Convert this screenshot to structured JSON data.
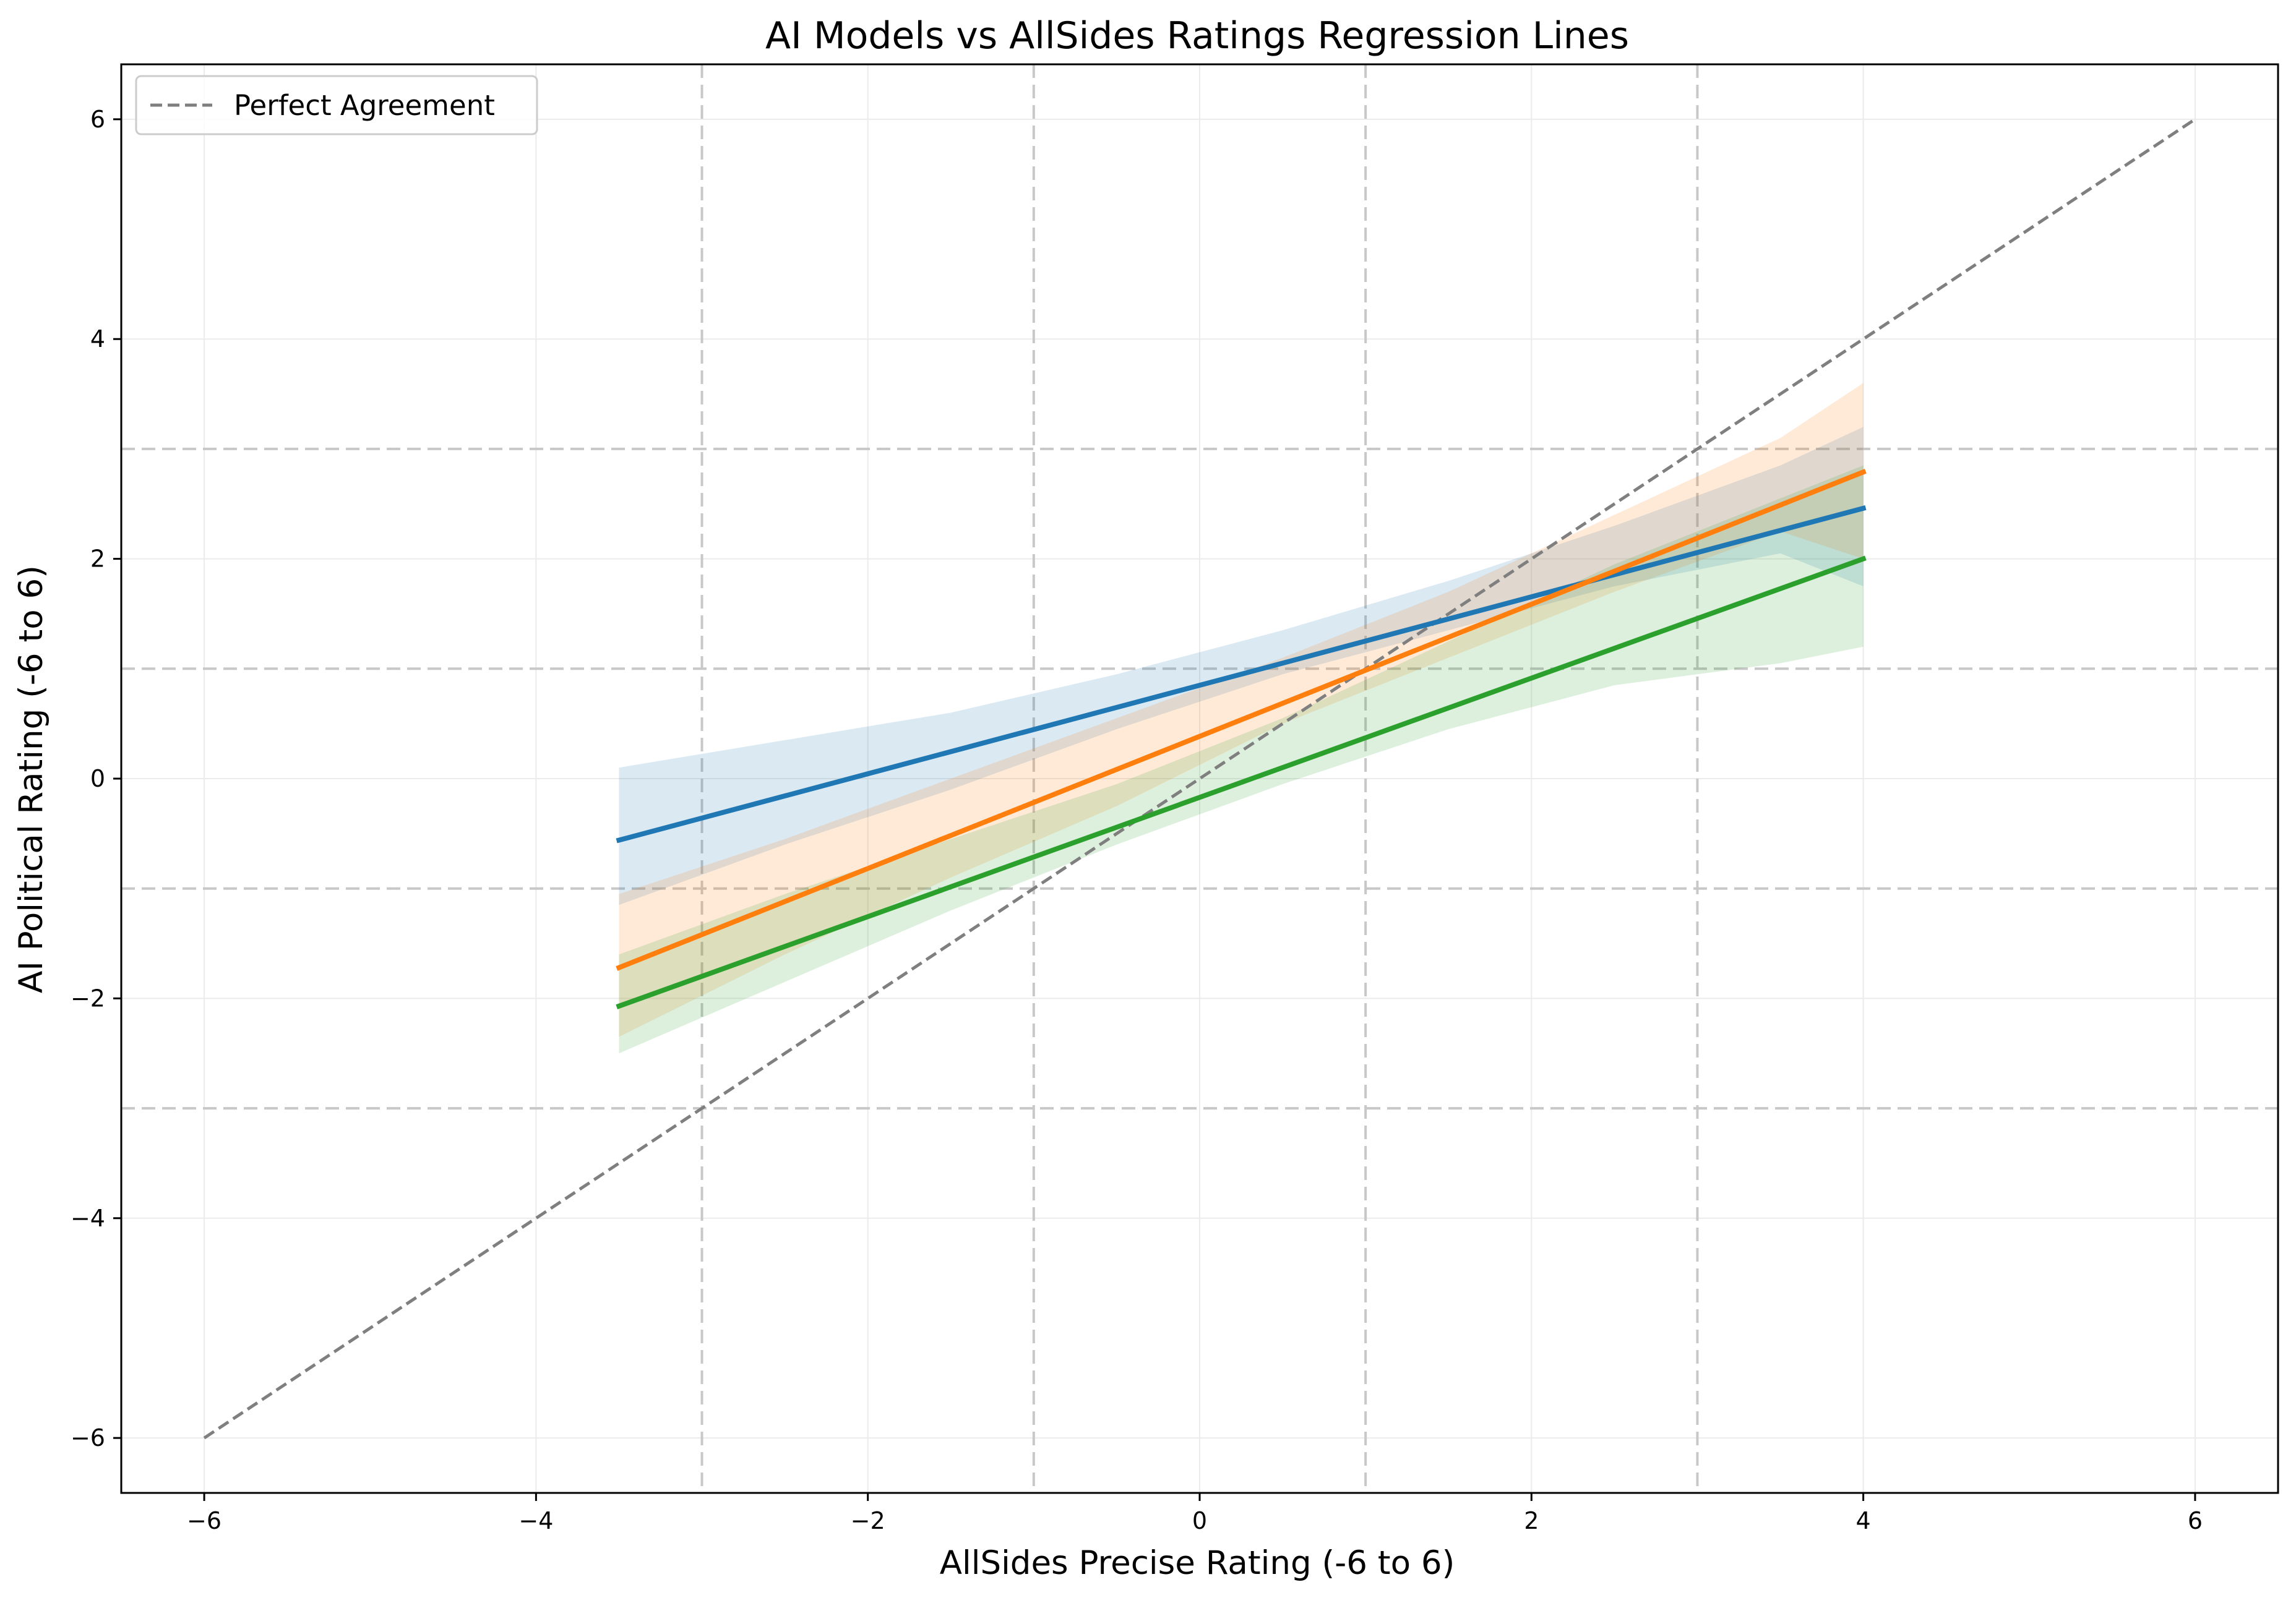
{
  "chart_data": {
    "type": "line",
    "title": "AI Models vs AllSides Ratings Regression Lines",
    "xlabel": "AllSides Precise Rating (-6 to 6)",
    "ylabel": "AI Political Rating (-6 to 6)",
    "xlim": [
      -6.5,
      6.5
    ],
    "ylim": [
      -6.5,
      6.5
    ],
    "xticks": [
      -6,
      -4,
      -2,
      0,
      2,
      4,
      6
    ],
    "yticks": [
      -6,
      -4,
      -2,
      0,
      2,
      4,
      6
    ],
    "xtick_labels": [
      "−6",
      "−4",
      "−2",
      "0",
      "2",
      "4",
      "6"
    ],
    "ytick_labels": [
      "−6",
      "−4",
      "−2",
      "0",
      "2",
      "4",
      "6"
    ],
    "grid": true,
    "reference_lines": {
      "vertical": [
        -3,
        -1,
        1,
        3
      ],
      "horizontal": [
        -3,
        -1,
        1,
        3
      ],
      "style": "dashed",
      "color": "#c8c8c8"
    },
    "perfect_agreement": {
      "name": "Perfect Agreement",
      "x": [
        -6,
        6
      ],
      "y": [
        -6,
        6
      ],
      "color": "#7f7f7f",
      "style": "dashed"
    },
    "legend": {
      "position": "top-left",
      "entries": [
        "Perfect Agreement"
      ]
    },
    "series": [
      {
        "color": "#1f77b4",
        "x": [
          -3.5,
          4
        ],
        "y": [
          -0.56,
          2.46
        ],
        "band_x": [
          -3.5,
          -2.5,
          -1.5,
          -0.5,
          0.5,
          1.5,
          2.5,
          3.5,
          4
        ],
        "band_lower": [
          -1.15,
          -0.6,
          -0.1,
          0.45,
          0.95,
          1.35,
          1.75,
          2.05,
          1.75
        ],
        "band_upper": [
          0.1,
          0.35,
          0.6,
          0.95,
          1.35,
          1.8,
          2.3,
          2.85,
          3.2
        ],
        "band_opacity": 0.16
      },
      {
        "color": "#ff7f0e",
        "x": [
          -3.5,
          4
        ],
        "y": [
          -1.72,
          2.79
        ],
        "band_x": [
          -3.5,
          -2.5,
          -1.5,
          -0.5,
          0.5,
          1.5,
          2.5,
          3.5,
          4
        ],
        "band_lower": [
          -2.35,
          -1.6,
          -0.9,
          -0.25,
          0.5,
          1.1,
          1.7,
          2.25,
          2.0
        ],
        "band_upper": [
          -1.05,
          -0.55,
          0.0,
          0.55,
          1.1,
          1.7,
          2.4,
          3.1,
          3.6
        ],
        "band_opacity": 0.16
      },
      {
        "color": "#2ca02c",
        "x": [
          -3.5,
          4
        ],
        "y": [
          -2.07,
          2.0
        ],
        "band_x": [
          -3.5,
          -2.5,
          -1.5,
          -0.5,
          0.5,
          1.5,
          2.5,
          3.5,
          4
        ],
        "band_lower": [
          -2.5,
          -1.85,
          -1.2,
          -0.6,
          -0.05,
          0.45,
          0.85,
          1.05,
          1.2
        ],
        "band_upper": [
          -1.6,
          -1.05,
          -0.55,
          -0.05,
          0.55,
          1.25,
          1.95,
          2.55,
          2.85
        ],
        "band_opacity": 0.16
      }
    ]
  }
}
